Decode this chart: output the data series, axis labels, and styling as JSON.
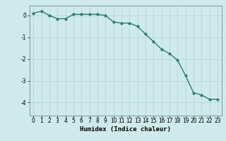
{
  "x": [
    0,
    1,
    2,
    3,
    4,
    5,
    6,
    7,
    8,
    9,
    10,
    11,
    12,
    13,
    14,
    15,
    16,
    17,
    18,
    19,
    20,
    21,
    22,
    23
  ],
  "y": [
    0.1,
    0.2,
    0.0,
    -0.15,
    -0.15,
    0.05,
    0.05,
    0.05,
    0.05,
    0.0,
    -0.3,
    -0.35,
    -0.35,
    -0.5,
    -0.85,
    -1.2,
    -1.55,
    -1.75,
    -2.05,
    -2.75,
    -3.55,
    -3.65,
    -3.85,
    -3.85
  ],
  "line_color": "#2d7d6e",
  "marker": "o",
  "marker_size": 2.0,
  "bg_color": "#ceeaea",
  "grid_color": "#b8d4d4",
  "xlabel": "Humidex (Indice chaleur)",
  "xlim": [
    -0.5,
    23.5
  ],
  "ylim": [
    -4.6,
    0.45
  ],
  "yticks": [
    0,
    -1,
    -2,
    -3,
    -4
  ],
  "xticks": [
    0,
    1,
    2,
    3,
    4,
    5,
    6,
    7,
    8,
    9,
    10,
    11,
    12,
    13,
    14,
    15,
    16,
    17,
    18,
    19,
    20,
    21,
    22,
    23
  ],
  "axis_fontsize": 6.5,
  "tick_fontsize": 5.5,
  "linewidth": 1.0,
  "spine_color": "#7a9a9a"
}
